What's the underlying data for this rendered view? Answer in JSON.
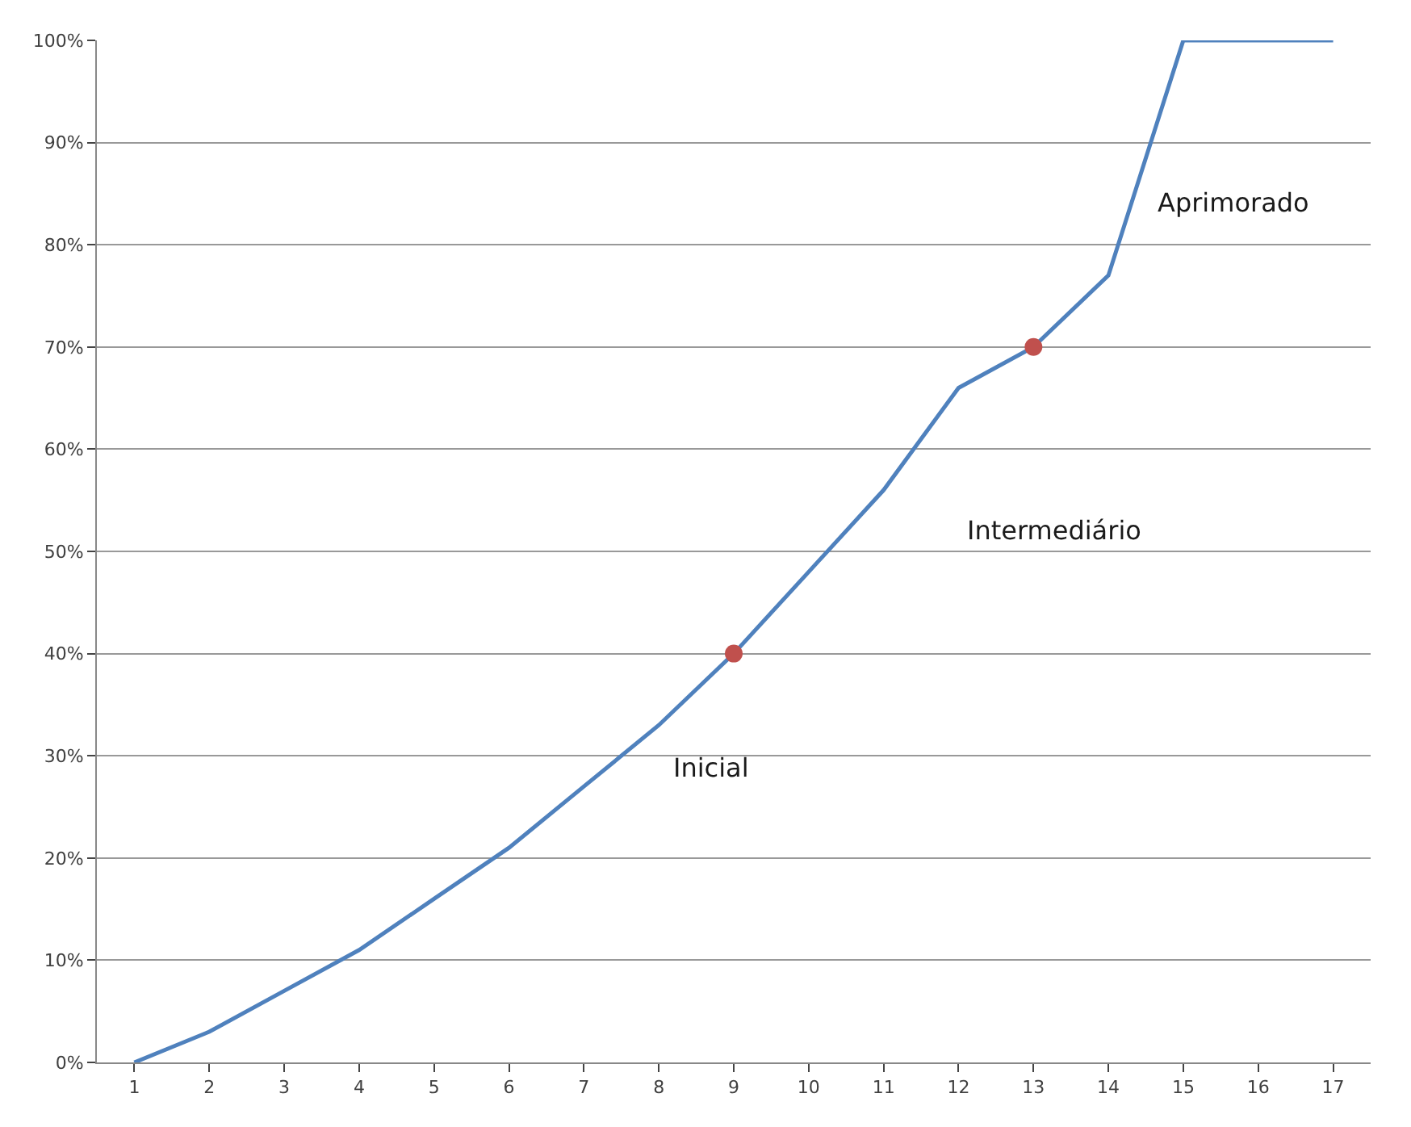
{
  "chart_data": {
    "type": "line",
    "x": [
      1,
      2,
      3,
      4,
      5,
      6,
      7,
      8,
      9,
      10,
      11,
      12,
      13,
      14,
      15,
      16,
      17
    ],
    "series": [
      {
        "color": "#4f81bd",
        "values": [
          0,
          3,
          7,
          11,
          16,
          21,
          27,
          33,
          40,
          48,
          56,
          66,
          70,
          77,
          100,
          100,
          100
        ]
      },
      {
        "type": "scatter",
        "color": "#c0504d",
        "x": [
          9,
          13
        ],
        "values": [
          40,
          70
        ]
      }
    ],
    "xlim": [
      0.5,
      17.5
    ],
    "xticks": [
      1,
      2,
      3,
      4,
      5,
      6,
      7,
      8,
      9,
      10,
      11,
      12,
      13,
      14,
      15,
      16,
      17
    ],
    "ylim": [
      0,
      100
    ],
    "yticks": [
      {
        "value": 0,
        "label": "0%"
      },
      {
        "value": 10,
        "label": "10%"
      },
      {
        "value": 20,
        "label": "20%"
      },
      {
        "value": 30,
        "label": "30%"
      },
      {
        "value": 40,
        "label": "40%"
      },
      {
        "value": 50,
        "label": "50%"
      },
      {
        "value": 60,
        "label": "60%"
      },
      {
        "value": 70,
        "label": "70%"
      },
      {
        "value": 80,
        "label": "80%"
      },
      {
        "value": 90,
        "label": "90%"
      },
      {
        "value": 100,
        "label": "100%"
      }
    ],
    "grid": "y",
    "annotations": [
      "Inicial",
      "Intermediário",
      "Aprimorado"
    ]
  }
}
